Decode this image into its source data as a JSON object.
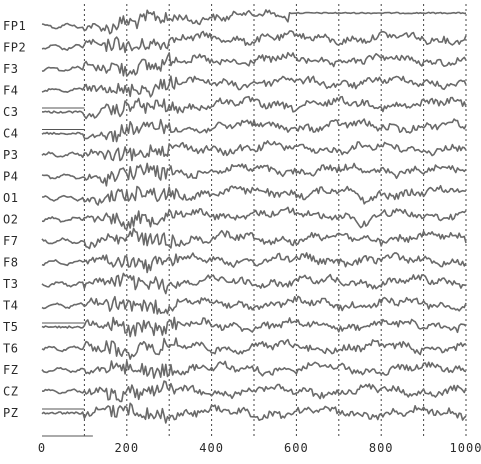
{
  "chart_data": {
    "type": "line",
    "x_ticks": [
      0,
      200,
      400,
      600,
      800,
      1000
    ],
    "x_tick_labels": [
      "0",
      "200",
      "400",
      "600",
      "800",
      "1000"
    ],
    "xlim": [
      0,
      1000
    ],
    "grid": "vertical-dotted",
    "channels": [
      "FP1",
      "FP2",
      "F3",
      "F4",
      "C3",
      "C4",
      "P3",
      "P4",
      "O1",
      "O2",
      "F7",
      "F8",
      "T3",
      "T4",
      "T5",
      "T6",
      "FZ",
      "CZ",
      "PZ"
    ],
    "colors": {
      "trace": "#6a6a6a",
      "grid": "#444444",
      "text": "#2a2a2a"
    }
  }
}
